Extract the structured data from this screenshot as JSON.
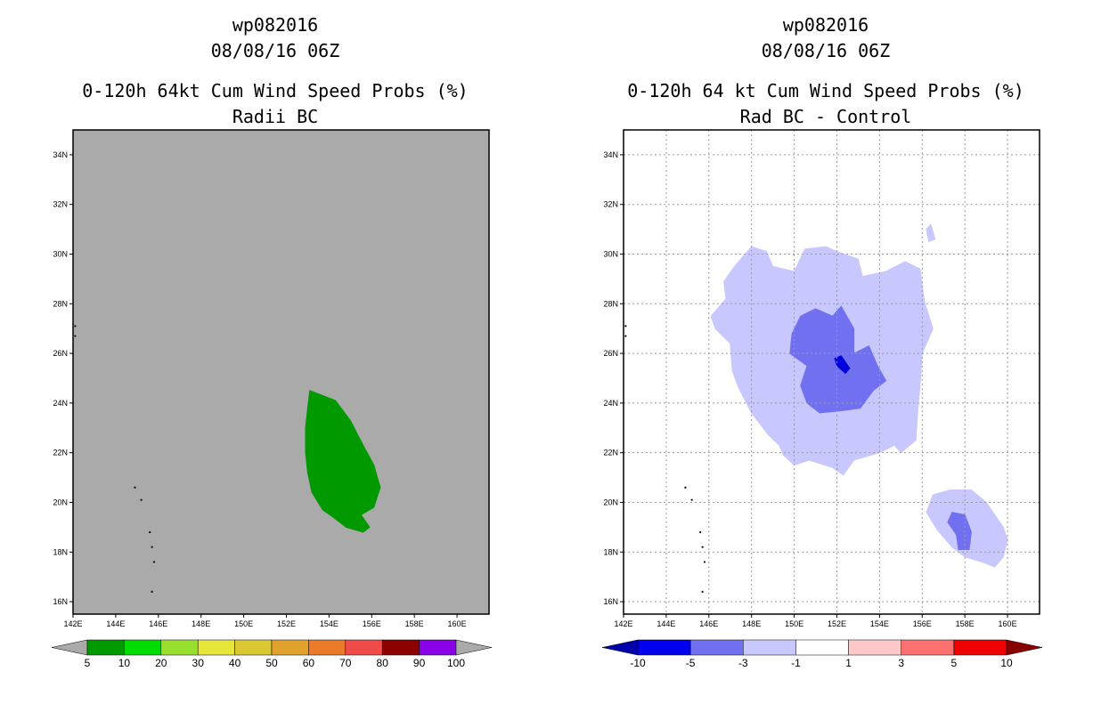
{
  "left": {
    "title1": "wp082016",
    "title2": "08/08/16 06Z",
    "title3": "0-120h 64kt Cum Wind Speed Probs (%)",
    "title4": "Radii BC"
  },
  "right": {
    "title1": "wp082016",
    "title2": "08/08/16 06Z",
    "title3": "0-120h 64 kt Cum Wind Speed Probs (%)",
    "title4": "Rad BC - Control"
  },
  "chart_data": [
    {
      "type": "heatmap",
      "name": "Radii BC",
      "xlim": [
        142,
        161.5
      ],
      "ylim": [
        15.5,
        35
      ],
      "x_ticks": [
        142,
        144,
        146,
        148,
        150,
        152,
        154,
        156,
        158,
        160
      ],
      "y_ticks": [
        16,
        18,
        20,
        22,
        24,
        26,
        28,
        30,
        32,
        34
      ],
      "x_tick_labels": [
        "142E",
        "144E",
        "146E",
        "148E",
        "150E",
        "152E",
        "154E",
        "156E",
        "158E",
        "160E"
      ],
      "y_tick_labels": [
        "16N",
        "18N",
        "20N",
        "22N",
        "24N",
        "26N",
        "28N",
        "30N",
        "32N",
        "34N"
      ],
      "grid": false,
      "background_color": "#aaaaaa",
      "contours": [
        {
          "level_range": "5-10",
          "color": "#009900",
          "polygon": [
            [
              153.1,
              24.5
            ],
            [
              154.3,
              24.1
            ],
            [
              155.0,
              23.3
            ],
            [
              155.6,
              22.3
            ],
            [
              156.1,
              21.5
            ],
            [
              156.4,
              20.6
            ],
            [
              156.1,
              19.8
            ],
            [
              155.5,
              19.5
            ],
            [
              155.9,
              19.0
            ],
            [
              155.6,
              18.8
            ],
            [
              154.8,
              19.0
            ],
            [
              154.2,
              19.4
            ],
            [
              153.7,
              19.7
            ],
            [
              153.2,
              20.4
            ],
            [
              153.0,
              21.2
            ],
            [
              152.9,
              22.0
            ],
            [
              152.9,
              23.0
            ],
            [
              153.0,
              23.8
            ]
          ]
        }
      ],
      "colorbar": {
        "colors": [
          "#aaaaaa",
          "#009900",
          "#00dd00",
          "#99e02e",
          "#e5e53a",
          "#d9c832",
          "#e0a22c",
          "#eb7a2a",
          "#f04b4b",
          "#8c0000",
          "#8a00e6",
          "#aaaaaa"
        ],
        "labels": [
          "5",
          "10",
          "20",
          "30",
          "40",
          "50",
          "60",
          "70",
          "80",
          "90",
          "100"
        ]
      }
    },
    {
      "type": "heatmap",
      "name": "Rad BC - Control",
      "xlim": [
        142,
        161.5
      ],
      "ylim": [
        15.5,
        35
      ],
      "x_ticks": [
        142,
        144,
        146,
        148,
        150,
        152,
        154,
        156,
        158,
        160
      ],
      "y_ticks": [
        16,
        18,
        20,
        22,
        24,
        26,
        28,
        30,
        32,
        34
      ],
      "x_tick_labels": [
        "142E",
        "144E",
        "146E",
        "148E",
        "150E",
        "152E",
        "154E",
        "156E",
        "158E",
        "160E"
      ],
      "y_tick_labels": [
        "16N",
        "18N",
        "20N",
        "22N",
        "24N",
        "26N",
        "28N",
        "30N",
        "32N",
        "34N"
      ],
      "grid": true,
      "background_color": "#ffffff",
      "contours": [
        {
          "level_range": "-3 to -1",
          "color": "#c8c8ff",
          "polygon": [
            [
              148.0,
              30.3
            ],
            [
              148.7,
              30.1
            ],
            [
              149.0,
              29.5
            ],
            [
              150.0,
              29.3
            ],
            [
              150.5,
              30.2
            ],
            [
              151.5,
              30.3
            ],
            [
              152.0,
              30.1
            ],
            [
              153.0,
              29.8
            ],
            [
              153.2,
              29.1
            ],
            [
              154.3,
              29.3
            ],
            [
              155.2,
              29.7
            ],
            [
              155.9,
              29.4
            ],
            [
              156.1,
              28.1
            ],
            [
              156.5,
              27.0
            ],
            [
              156.0,
              26.0
            ],
            [
              155.9,
              24.7
            ],
            [
              155.8,
              23.8
            ],
            [
              155.7,
              22.5
            ],
            [
              155.0,
              22.0
            ],
            [
              154.7,
              22.3
            ],
            [
              154.0,
              22.0
            ],
            [
              152.8,
              21.7
            ],
            [
              152.3,
              21.1
            ],
            [
              151.8,
              21.4
            ],
            [
              150.7,
              21.7
            ],
            [
              150.0,
              21.5
            ],
            [
              149.5,
              21.9
            ],
            [
              149.3,
              22.3
            ],
            [
              148.8,
              22.7
            ],
            [
              148.0,
              23.6
            ],
            [
              147.4,
              24.6
            ],
            [
              147.1,
              25.3
            ],
            [
              147.0,
              26.4
            ],
            [
              146.3,
              27.0
            ],
            [
              146.1,
              27.5
            ],
            [
              146.8,
              28.2
            ],
            [
              146.7,
              28.9
            ],
            [
              147.2,
              29.5
            ]
          ]
        },
        {
          "level_range": "-3 to -1",
          "color": "#c8c8ff",
          "polygon": [
            [
              156.4,
              31.2
            ],
            [
              156.6,
              30.6
            ],
            [
              156.3,
              30.5
            ],
            [
              156.2,
              31.0
            ]
          ]
        },
        {
          "level_range": "-3 to -1",
          "color": "#c8c8ff",
          "polygon": [
            [
              156.5,
              20.3
            ],
            [
              157.3,
              20.5
            ],
            [
              158.3,
              20.5
            ],
            [
              159.0,
              20.0
            ],
            [
              159.8,
              19.0
            ],
            [
              160.0,
              18.5
            ],
            [
              159.8,
              17.8
            ],
            [
              159.4,
              17.4
            ],
            [
              158.8,
              17.6
            ],
            [
              158.0,
              17.8
            ],
            [
              157.4,
              18.2
            ],
            [
              156.7,
              18.9
            ],
            [
              156.2,
              19.6
            ]
          ]
        },
        {
          "level_range": "-5 to -3",
          "color": "#7070f0",
          "polygon": [
            [
              150.3,
              27.5
            ],
            [
              151.0,
              27.8
            ],
            [
              151.8,
              27.5
            ],
            [
              152.2,
              27.9
            ],
            [
              152.8,
              27.0
            ],
            [
              152.8,
              26.0
            ],
            [
              153.5,
              26.3
            ],
            [
              153.9,
              25.5
            ],
            [
              154.3,
              24.9
            ],
            [
              153.7,
              24.5
            ],
            [
              153.1,
              23.8
            ],
            [
              152.3,
              23.7
            ],
            [
              151.2,
              23.6
            ],
            [
              150.6,
              24.0
            ],
            [
              150.3,
              24.7
            ],
            [
              150.6,
              25.5
            ],
            [
              149.8,
              26.0
            ],
            [
              149.9,
              26.8
            ]
          ]
        },
        {
          "level_range": "-5 to -3",
          "color": "#7070f0",
          "polygon": [
            [
              157.4,
              19.6
            ],
            [
              158.0,
              19.5
            ],
            [
              158.3,
              18.8
            ],
            [
              158.2,
              18.1
            ],
            [
              157.7,
              18.1
            ],
            [
              157.6,
              18.7
            ],
            [
              157.2,
              19.2
            ]
          ]
        },
        {
          "level_range": "-10 to -5",
          "color": "#0000dd",
          "polygon": [
            [
              151.9,
              25.8
            ],
            [
              152.2,
              25.9
            ],
            [
              152.6,
              25.4
            ],
            [
              152.4,
              25.2
            ],
            [
              152.0,
              25.5
            ]
          ]
        }
      ],
      "colorbar": {
        "colors": [
          "#0000aa",
          "#0000ee",
          "#7070f0",
          "#c8c8ff",
          "#ffffff",
          "#ffc8c8",
          "#ff7070",
          "#ee0000",
          "#880000"
        ],
        "labels": [
          "-10",
          "-5",
          "-3",
          "-1",
          "1",
          "3",
          "5",
          "10"
        ]
      }
    }
  ]
}
